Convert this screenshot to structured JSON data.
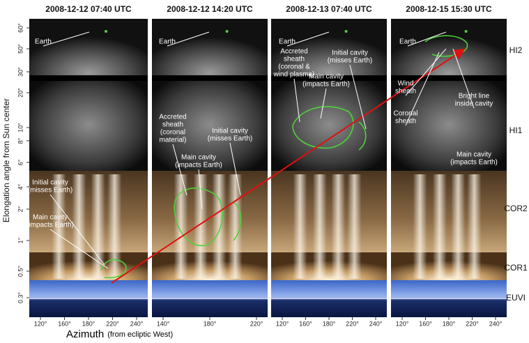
{
  "panels": [
    {
      "title": "2008-12-12 07:40 UTC",
      "xticks": [
        "120°",
        "160°",
        "180°",
        "220°",
        "240°"
      ],
      "annotations": [
        {
          "lines": [
            "Earth"
          ]
        },
        {
          "lines": [
            "Initial cavity",
            "(misses Earth)"
          ]
        },
        {
          "lines": [
            "Main cavity",
            "(impacts Earth)"
          ]
        }
      ]
    },
    {
      "title": "2008-12-12 14:20 UTC",
      "xticks": [
        "140°",
        "180°",
        "220°"
      ],
      "annotations": [
        {
          "lines": [
            "Earth"
          ]
        },
        {
          "lines": [
            "Accreted",
            "sheath",
            "(coronal",
            "material)"
          ]
        },
        {
          "lines": [
            "Initial cavity",
            "(misses Earth)"
          ]
        },
        {
          "lines": [
            "Main cavity",
            "(impacts Earth)"
          ]
        }
      ]
    },
    {
      "title": "2008-12-13 07:40 UTC",
      "xticks": [
        "120°",
        "160°",
        "180°",
        "220°",
        "240°"
      ],
      "annotations": [
        {
          "lines": [
            "Earth"
          ]
        },
        {
          "lines": [
            "Accreted",
            "sheath",
            "(coronal &",
            "wind plasma)"
          ]
        },
        {
          "lines": [
            "Initial cavity",
            "(misses Earth)"
          ]
        },
        {
          "lines": [
            "Main cavity",
            "(impacts Earth)"
          ]
        }
      ]
    },
    {
      "title": "2008-12-15 15:30 UTC",
      "xticks": [
        "120°",
        "160°",
        "180°",
        "220°",
        "240°"
      ],
      "annotations": [
        {
          "lines": [
            "Earth"
          ]
        },
        {
          "lines": [
            "Wind",
            "sheath"
          ]
        },
        {
          "lines": [
            "Coronal",
            "sheath"
          ]
        },
        {
          "lines": [
            "Bright line",
            "inside cavity"
          ]
        },
        {
          "lines": [
            "Main cavity",
            "(impacts Earth)"
          ]
        }
      ]
    }
  ],
  "instruments": [
    "HI2",
    "HI1",
    "COR2",
    "COR1",
    "EUVI"
  ],
  "yticks": [
    "60°",
    "50°",
    "30°",
    "20°",
    "10°",
    "8°",
    "6°",
    "4°",
    "2°",
    "1°",
    "0.5°",
    "0.3°"
  ],
  "ylabel": "Elongation angle from Sun center",
  "xlabel": {
    "main": "Azimuth",
    "sub": "(from ecliptic West)"
  }
}
